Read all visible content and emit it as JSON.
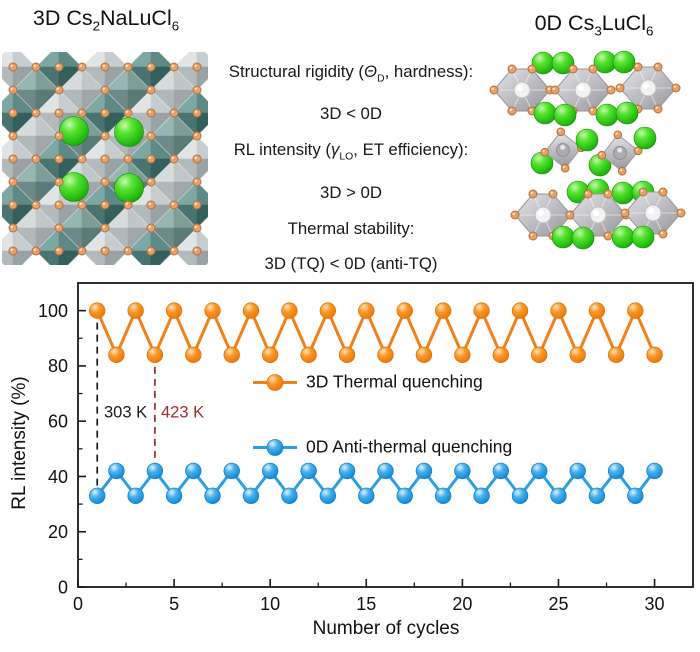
{
  "header": {
    "left_title_parts": {
      "t1": "3D Cs",
      "s1": "2",
      "t2": "NaLuCl",
      "s2": "6"
    },
    "right_title_parts": {
      "t1": "0D Cs",
      "s1": "3",
      "t2": "LuCl",
      "s2": "6"
    },
    "comparisons": [
      {
        "line1_pre": "Structural rigidity (",
        "line1_sym": "Θ",
        "line1_sub": "D",
        "line1_post": ", hardness):",
        "line2": "3D < 0D"
      },
      {
        "line1_pre": "RL intensity (",
        "line1_sym": "γ",
        "line1_sub": "LO",
        "line1_post": ", ET efficiency):",
        "line2": "3D > 0D"
      },
      {
        "line1_pre": "Thermal stability:",
        "line1_sym": "",
        "line1_sub": "",
        "line1_post": "",
        "line2": "3D (TQ) < 0D (anti-TQ)"
      }
    ]
  },
  "structures": {
    "left_name": "3D Cs2NaLuCl6 crystal structure",
    "right_name": "0D Cs3LuCl6 crystal structure",
    "colors": {
      "teal_octahedron": "#4a7a78",
      "gray_octahedron": "#b9b9be",
      "chlorine_dot": "#e7a166",
      "cesium_green": "#2ecc16"
    }
  },
  "chart_data": {
    "type": "line",
    "title": "",
    "xlabel": "Number of cycles",
    "ylabel": "RL intensity (%)",
    "xlim": [
      0,
      32
    ],
    "ylim": [
      0,
      110
    ],
    "xticks": [
      0,
      5,
      10,
      15,
      20,
      25,
      30
    ],
    "yticks": [
      0,
      20,
      40,
      60,
      80,
      100
    ],
    "grid": false,
    "legend_position": "inside-left-middle",
    "x": [
      1,
      2,
      3,
      4,
      5,
      6,
      7,
      8,
      9,
      10,
      11,
      12,
      13,
      14,
      15,
      16,
      17,
      18,
      19,
      20,
      21,
      22,
      23,
      24,
      25,
      26,
      27,
      28,
      29,
      30
    ],
    "series": [
      {
        "name": "3D Thermal quenching",
        "color": "#f08019",
        "values": [
          100,
          84,
          100,
          84,
          100,
          84,
          100,
          84,
          100,
          84,
          100,
          84,
          100,
          84,
          100,
          84,
          100,
          84,
          100,
          84,
          100,
          84,
          100,
          84,
          100,
          84,
          100,
          84,
          100,
          84
        ]
      },
      {
        "name": "0D Anti-thermal quenching",
        "color": "#2b9fe3",
        "values": [
          33,
          42,
          33,
          42,
          33,
          42,
          33,
          42,
          33,
          42,
          33,
          42,
          33,
          42,
          33,
          42,
          33,
          42,
          33,
          42,
          33,
          42,
          33,
          42,
          33,
          42,
          33,
          42,
          33,
          42
        ]
      }
    ],
    "annotations": [
      {
        "label": "303 K",
        "x": 1,
        "y_from": 100,
        "y_to": 33,
        "color": "#1a1a1a"
      },
      {
        "label": "423 K",
        "x": 4,
        "y_from": 84,
        "y_to": 42,
        "color": "#9d2f2a"
      }
    ]
  }
}
